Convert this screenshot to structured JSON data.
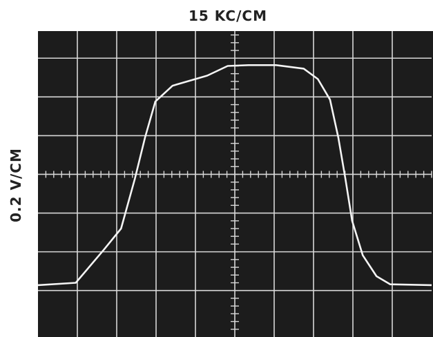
{
  "chart_data": {
    "type": "line",
    "title": "15 KC/CM",
    "ylabel": "0.2 V/CM",
    "xlim": [
      -5,
      5
    ],
    "ylim": [
      -4.2,
      3.7
    ],
    "xticks": [
      -4,
      -3,
      -2,
      -1,
      0,
      1,
      2,
      3,
      4
    ],
    "yticks": [
      -3,
      -2,
      -1,
      0,
      1,
      2,
      3
    ],
    "grid": true,
    "color": "#f4f4f4",
    "x": [
      -5,
      -4.04,
      -3.33,
      -2.89,
      -2.54,
      -2.28,
      -2.02,
      -1.58,
      -0.7,
      -0.18,
      0.35,
      1.05,
      1.75,
      2.11,
      2.42,
      2.63,
      2.81,
      2.98,
      3.25,
      3.6,
      3.95,
      5
    ],
    "values": [
      -2.86,
      -2.8,
      -1.95,
      -1.4,
      -0.12,
      0.95,
      1.88,
      2.29,
      2.55,
      2.8,
      2.82,
      2.82,
      2.73,
      2.46,
      1.93,
      0.95,
      -0.12,
      -1.2,
      -2.09,
      -2.63,
      -2.84,
      -2.86
    ]
  }
}
